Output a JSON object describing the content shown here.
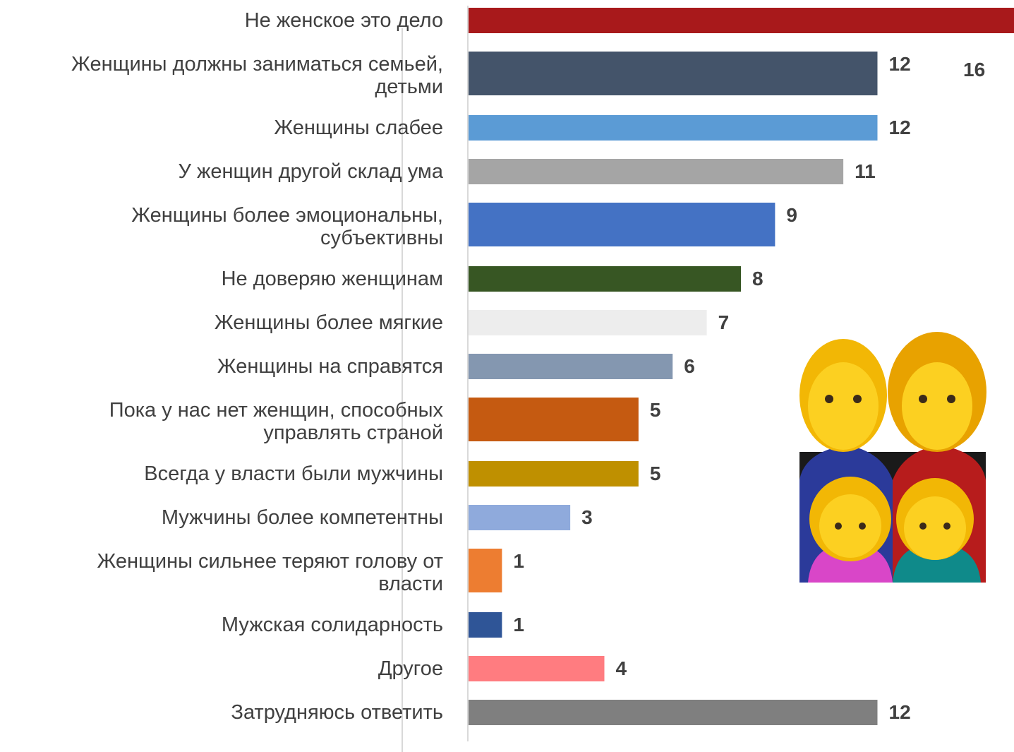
{
  "chart_data": {
    "type": "bar",
    "orientation": "horizontal",
    "categories": [
      "Не женское это дело",
      "Женщины должны заниматься семьей, детьми",
      "Женщины слабее",
      "У женщин другой склад ума",
      "Женщины более эмоциональны, субъективны",
      "Не доверяю женщинам",
      "Женщины более мягкие",
      "Женщины на справятся",
      "Пока у нас нет женщин, способных управлять страной",
      "Всегда у власти были мужчины",
      "Мужчины более компетентны",
      "Женщины сильнее теряют голову от власти",
      "Мужская солидарность",
      "Другое",
      "Затрудняюсь ответить"
    ],
    "values": [
      16,
      12,
      12,
      11,
      9,
      8,
      7,
      6,
      5,
      5,
      3,
      1,
      1,
      4,
      12
    ],
    "colors": [
      "#a8191b",
      "#44546a",
      "#5b9bd5",
      "#a5a5a5",
      "#4472c4",
      "#375623",
      "#ededed",
      "#8497b0",
      "#c55a11",
      "#bf9000",
      "#8faadc",
      "#ed7d31",
      "#2f5597",
      "#ff7c80",
      "#7f7f7f"
    ],
    "xlim": [
      0,
      16
    ]
  }
}
